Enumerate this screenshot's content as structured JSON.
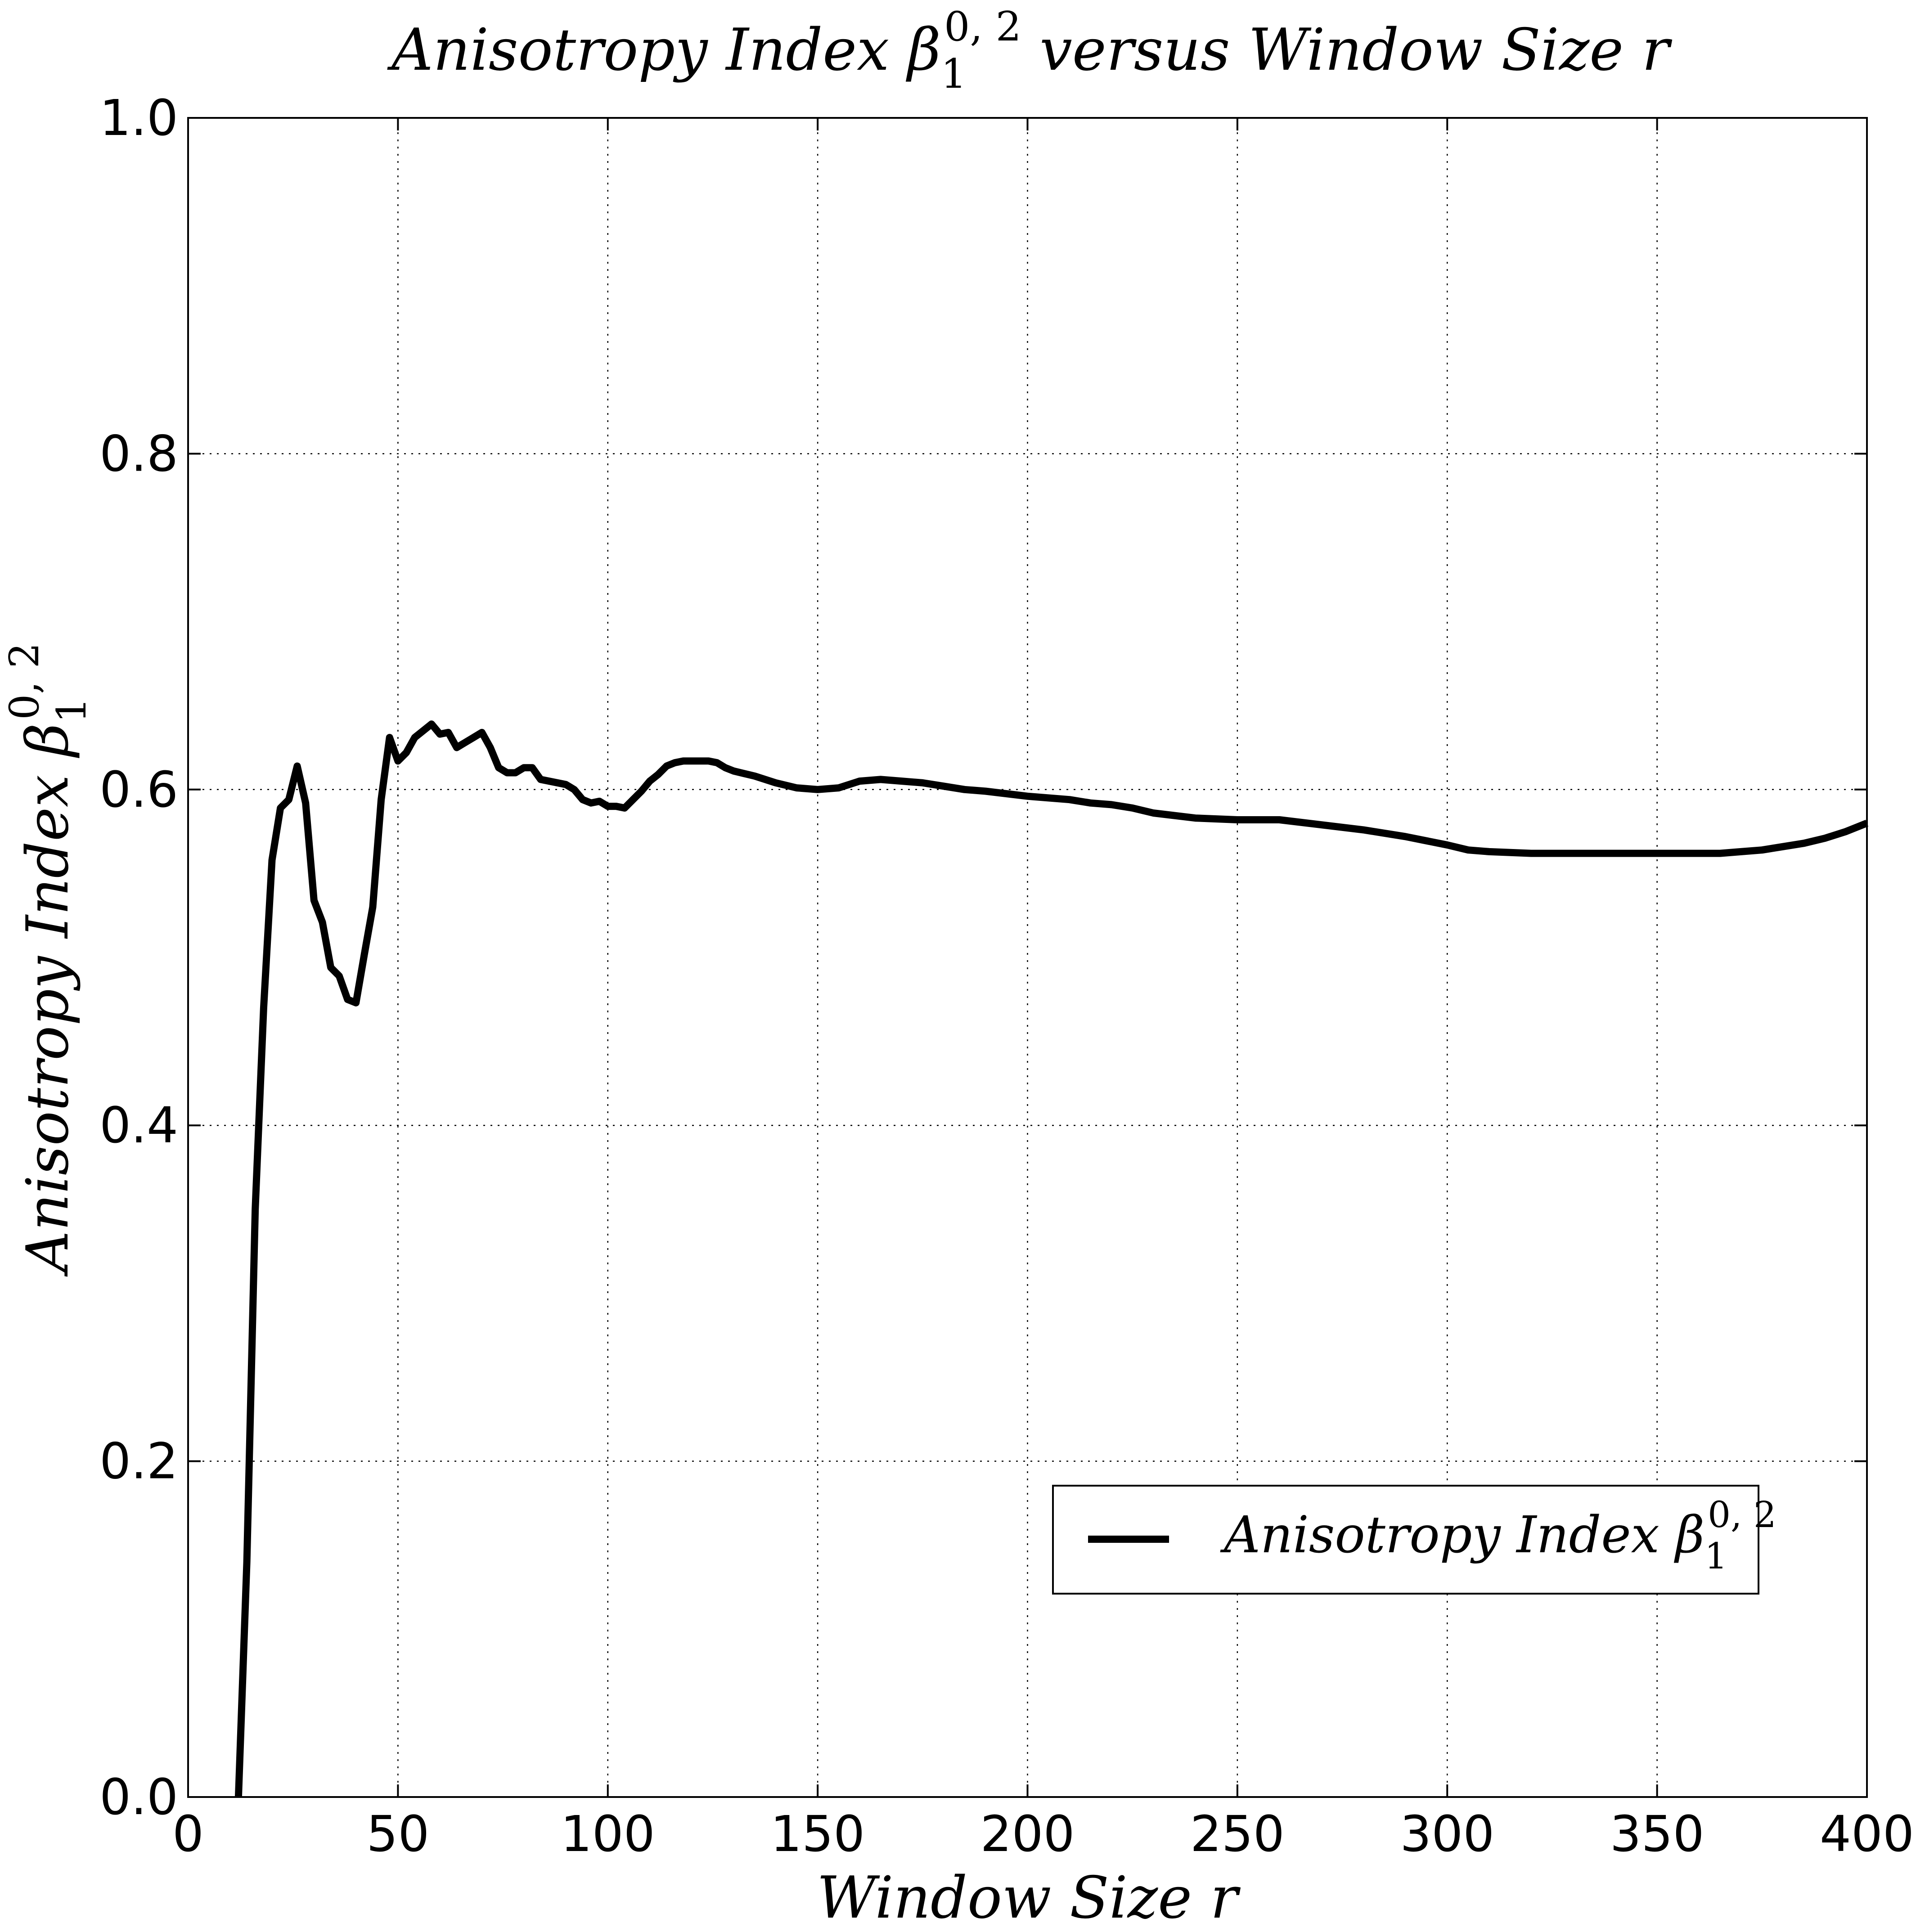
{
  "chart_data": {
    "type": "line",
    "title": "Anisotropy Index β₁⁰,² versus Window Size r",
    "title_parts": {
      "pre": "Anisotropy Index ",
      "greek": "β",
      "sub": "1",
      "sup": "0, 2",
      "post": " versus Window Size r"
    },
    "xlabel": "Window Size r",
    "ylabel": "Anisotropy Index β₁⁰,²",
    "ylabel_parts": {
      "pre": "Anisotropy Index ",
      "greek": "β",
      "sub": "1",
      "sup": "0, 2"
    },
    "xlim": [
      0,
      400
    ],
    "ylim": [
      0,
      1.0
    ],
    "xticks": [
      0,
      50,
      100,
      150,
      200,
      250,
      300,
      350,
      400
    ],
    "yticks": [
      0.0,
      0.2,
      0.4,
      0.6,
      0.8,
      1.0
    ],
    "xtick_labels": [
      "0",
      "50",
      "100",
      "150",
      "200",
      "250",
      "300",
      "350",
      "400"
    ],
    "ytick_labels": [
      "0.0",
      "0.2",
      "0.4",
      "0.6",
      "0.8",
      "1.0"
    ],
    "grid": true,
    "legend_position": "lower-right",
    "line_color": "#000000",
    "series": [
      {
        "name": "Anisotropy Index β₁⁰,²",
        "name_parts": {
          "pre": "Anisotropy Index ",
          "greek": "β",
          "sub": "1",
          "sup": "0, 2"
        },
        "x": [
          12,
          14,
          16,
          18,
          20,
          22,
          24,
          26,
          28,
          30,
          32,
          34,
          36,
          38,
          40,
          42,
          44,
          46,
          48,
          50,
          52,
          54,
          56,
          58,
          60,
          62,
          64,
          66,
          68,
          70,
          72,
          74,
          76,
          78,
          80,
          82,
          84,
          86,
          88,
          90,
          92,
          94,
          96,
          98,
          100,
          102,
          104,
          106,
          108,
          110,
          112,
          114,
          116,
          118,
          120,
          122,
          124,
          126,
          128,
          130,
          135,
          140,
          145,
          150,
          155,
          160,
          165,
          170,
          175,
          180,
          185,
          190,
          200,
          210,
          215,
          220,
          225,
          230,
          240,
          250,
          260,
          270,
          280,
          290,
          300,
          305,
          310,
          320,
          330,
          340,
          350,
          360,
          365,
          370,
          375,
          380,
          385,
          390,
          395,
          400
        ],
        "y": [
          0.0,
          0.14,
          0.35,
          0.47,
          0.558,
          0.589,
          0.594,
          0.614,
          0.592,
          0.534,
          0.521,
          0.494,
          0.489,
          0.475,
          0.473,
          0.502,
          0.53,
          0.594,
          0.631,
          0.617,
          0.622,
          0.631,
          0.635,
          0.639,
          0.633,
          0.634,
          0.625,
          0.628,
          0.631,
          0.634,
          0.625,
          0.613,
          0.61,
          0.61,
          0.613,
          0.613,
          0.606,
          0.605,
          0.604,
          0.603,
          0.6,
          0.594,
          0.592,
          0.593,
          0.59,
          0.59,
          0.589,
          0.594,
          0.599,
          0.605,
          0.609,
          0.614,
          0.616,
          0.617,
          0.617,
          0.617,
          0.617,
          0.616,
          0.613,
          0.611,
          0.608,
          0.604,
          0.601,
          0.6,
          0.601,
          0.605,
          0.606,
          0.605,
          0.604,
          0.602,
          0.6,
          0.599,
          0.596,
          0.594,
          0.592,
          0.591,
          0.589,
          0.586,
          0.583,
          0.582,
          0.582,
          0.579,
          0.576,
          0.572,
          0.567,
          0.564,
          0.563,
          0.562,
          0.562,
          0.562,
          0.562,
          0.562,
          0.562,
          0.563,
          0.564,
          0.566,
          0.568,
          0.571,
          0.575,
          0.58
        ]
      }
    ]
  }
}
